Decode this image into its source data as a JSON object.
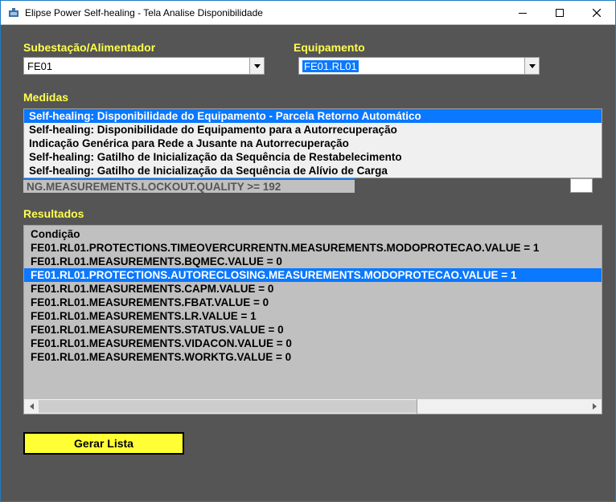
{
  "window": {
    "title": "Elipse Power Self-healing - Tela Analise Disponibilidade"
  },
  "labels": {
    "subestacao": "Subestação/Alimentador",
    "equipamento": "Equipamento",
    "medidas": "Medidas",
    "resultados": "Resultados"
  },
  "subestacao": {
    "value": "FE01"
  },
  "equipamento": {
    "value": "FE01.RL01"
  },
  "medidas": {
    "items": [
      {
        "text": "Self-healing: Disponibilidade do Equipamento - Parcela Retorno Automático",
        "selected": true
      },
      {
        "text": "Self-healing: Disponibilidade do Equipamento para a Autorrecuperação",
        "selected": false
      },
      {
        "text": "Indicação Genérica para Rede a Jusante na Autorrecuperação",
        "selected": false
      },
      {
        "text": "Self-healing: Gatilho de Inicialização da Sequência de Restabelecimento",
        "selected": false
      },
      {
        "text": "Self-healing: Gatilho de Inicialização da Sequência de Alívio de Carga",
        "selected": false
      }
    ],
    "cutoff_text": "NG.MEASUREMENTS.LOCKOUT.QUALITY >= 192"
  },
  "resultados": {
    "header": "Condição",
    "rows": [
      {
        "text": "FE01.RL01.PROTECTIONS.TIMEOVERCURRENTN.MEASUREMENTS.MODOPROTECAO.VALUE = 1",
        "selected": false
      },
      {
        "text": "FE01.RL01.MEASUREMENTS.BQMEC.VALUE = 0",
        "selected": false
      },
      {
        "text": "FE01.RL01.PROTECTIONS.AUTORECLOSING.MEASUREMENTS.MODOPROTECAO.VALUE = 1",
        "selected": true
      },
      {
        "text": "FE01.RL01.MEASUREMENTS.CAPM.VALUE = 0",
        "selected": false
      },
      {
        "text": "FE01.RL01.MEASUREMENTS.FBAT.VALUE = 0",
        "selected": false
      },
      {
        "text": "FE01.RL01.MEASUREMENTS.LR.VALUE = 1",
        "selected": false
      },
      {
        "text": "FE01.RL01.MEASUREMENTS.STATUS.VALUE = 0",
        "selected": false
      },
      {
        "text": "FE01.RL01.MEASUREMENTS.VIDACON.VALUE = 0",
        "selected": false
      },
      {
        "text": "FE01.RL01.MEASUREMENTS.WORKTG.VALUE = 0",
        "selected": false
      }
    ]
  },
  "buttons": {
    "gerar_lista": "Gerar Lista"
  },
  "colors": {
    "accent_yellow": "#ffff4d",
    "selection_blue": "#0a78ff",
    "button_yellow": "#ffff33",
    "client_bg": "#555555",
    "panel_gray": "#c0c0c0",
    "listbox_gray": "#f0f0f0"
  }
}
